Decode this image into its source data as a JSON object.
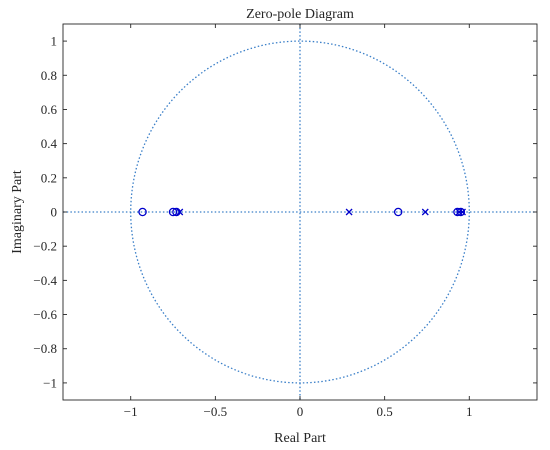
{
  "chart_data": {
    "type": "scatter",
    "title": "Zero-pole Diagram",
    "xlabel": "Real Part",
    "ylabel": "Imaginary Part",
    "xlim": [
      -1.4,
      1.4
    ],
    "ylim": [
      -1.1,
      1.1
    ],
    "x_ticks": [
      -1,
      -0.5,
      0,
      0.5,
      1
    ],
    "x_tick_labels": [
      "−1",
      "−0.5",
      "0",
      "0.5",
      "1"
    ],
    "y_ticks": [
      -1,
      -0.8,
      -0.6,
      -0.4,
      -0.2,
      0,
      0.2,
      0.4,
      0.6,
      0.8,
      1
    ],
    "y_tick_labels": [
      "−1",
      "−0.8",
      "−0.6",
      "−0.4",
      "−0.2",
      "0",
      "0.2",
      "0.4",
      "0.6",
      "0.8",
      "1"
    ],
    "unit_circle": true,
    "grid": false,
    "series": [
      {
        "marker": "circle",
        "color": "#0000cc",
        "points": [
          [
            -0.93,
            0
          ],
          [
            -0.75,
            0
          ],
          [
            -0.73,
            0
          ],
          [
            0.58,
            0
          ],
          [
            0.93,
            0
          ],
          [
            0.95,
            0
          ]
        ]
      },
      {
        "marker": "cross",
        "color": "#0000cc",
        "points": [
          [
            -0.71,
            0
          ],
          [
            0.29,
            0
          ],
          [
            0.74,
            0
          ],
          [
            0.94,
            0
          ],
          [
            0.96,
            0
          ]
        ]
      }
    ],
    "reference_line_color": "#3a7fc8"
  }
}
